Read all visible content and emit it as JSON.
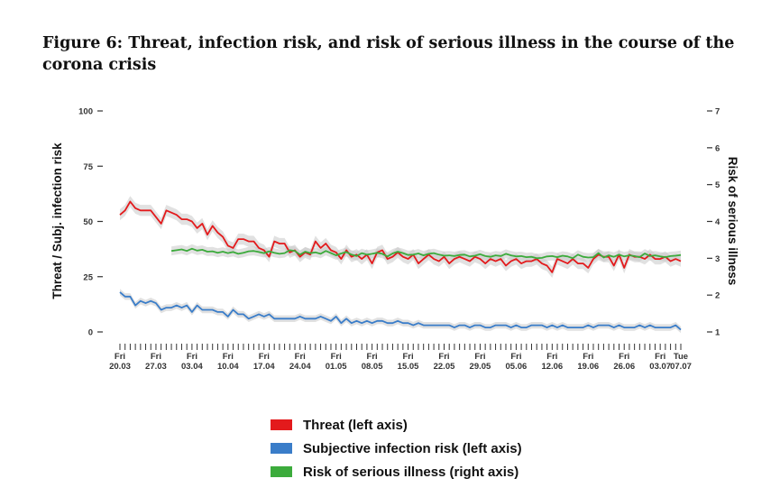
{
  "figure": {
    "title": "Figure 6: Threat, infection risk, and risk of serious illness in the course of the corona crisis"
  },
  "chart_data": {
    "type": "line",
    "ylabel": "Threat / Subj. infection risk",
    "ylabel_right": "Risk of serious illness",
    "ylim": [
      0,
      100
    ],
    "y_ticks": [
      0,
      25,
      50,
      75,
      100
    ],
    "ylim_right": [
      1,
      7
    ],
    "y_ticks_right": [
      1,
      2,
      3,
      4,
      5,
      6,
      7
    ],
    "grid": false,
    "legend_position": "bottom",
    "x_range_days": [
      0,
      109
    ],
    "x_ticks": [
      {
        "day": 0,
        "line1": "Fri",
        "line2": "20.03"
      },
      {
        "day": 7,
        "line1": "Fri",
        "line2": "27.03"
      },
      {
        "day": 14,
        "line1": "Fri",
        "line2": "03.04"
      },
      {
        "day": 21,
        "line1": "Fri",
        "line2": "10.04"
      },
      {
        "day": 28,
        "line1": "Fri",
        "line2": "17.04"
      },
      {
        "day": 35,
        "line1": "Fri",
        "line2": "24.04"
      },
      {
        "day": 42,
        "line1": "Fri",
        "line2": "01.05"
      },
      {
        "day": 49,
        "line1": "Fri",
        "line2": "08.05"
      },
      {
        "day": 56,
        "line1": "Fri",
        "line2": "15.05"
      },
      {
        "day": 63,
        "line1": "Fri",
        "line2": "22.05"
      },
      {
        "day": 70,
        "line1": "Fri",
        "line2": "29.05"
      },
      {
        "day": 77,
        "line1": "Fri",
        "line2": "05.06"
      },
      {
        "day": 84,
        "line1": "Fri",
        "line2": "12.06"
      },
      {
        "day": 91,
        "line1": "Fri",
        "line2": "19.06"
      },
      {
        "day": 98,
        "line1": "Fri",
        "line2": "26.06"
      },
      {
        "day": 105,
        "line1": "Fri",
        "line2": "03.07"
      },
      {
        "day": 109,
        "line1": "Tue",
        "line2": "07.07"
      }
    ],
    "series": [
      {
        "name": "Threat (left axis)",
        "axis": "left",
        "color": "#e31a1c",
        "band": 2.5,
        "x": [
          0,
          1,
          2,
          3,
          4,
          5,
          6,
          7,
          8,
          9,
          10,
          11,
          12,
          13,
          14,
          15,
          16,
          17,
          18,
          19,
          20,
          21,
          22,
          23,
          24,
          25,
          26,
          27,
          28,
          29,
          30,
          31,
          32,
          33,
          34,
          35,
          36,
          37,
          38,
          39,
          40,
          41,
          42,
          43,
          44,
          45,
          46,
          47,
          48,
          49,
          50,
          51,
          52,
          53,
          54,
          55,
          56,
          57,
          58,
          59,
          60,
          61,
          62,
          63,
          64,
          65,
          66,
          67,
          68,
          69,
          70,
          71,
          72,
          73,
          74,
          75,
          76,
          77,
          78,
          79,
          80,
          81,
          82,
          83,
          84,
          85,
          86,
          87,
          88,
          89,
          90,
          91,
          92,
          93,
          94,
          95,
          96,
          97,
          98,
          99,
          100,
          101,
          102,
          103,
          104,
          105,
          106,
          107,
          108,
          109
        ],
        "values": [
          53,
          55,
          59,
          56,
          55,
          55,
          55,
          52,
          49,
          55,
          54,
          53,
          51,
          51,
          50,
          47,
          49,
          44,
          48,
          45,
          43,
          39,
          38,
          42,
          42,
          41,
          41,
          38,
          37,
          34,
          41,
          40,
          40,
          36,
          37,
          34,
          36,
          35,
          41,
          38,
          40,
          37,
          36,
          33,
          37,
          34,
          35,
          33,
          35,
          31,
          36,
          37,
          33,
          34,
          36,
          34,
          33,
          35,
          31,
          33,
          35,
          33,
          32,
          34,
          31,
          33,
          34,
          33,
          32,
          34,
          33,
          31,
          33,
          32,
          33,
          30,
          32,
          33,
          31,
          32,
          32,
          33,
          31,
          30,
          27,
          33,
          32,
          31,
          33,
          31,
          31,
          29,
          33,
          35,
          34,
          34,
          30,
          35,
          29,
          35,
          34,
          34,
          33,
          35,
          33,
          33,
          34,
          32,
          33,
          32
        ]
      },
      {
        "name": "Subjective infection risk (left axis)",
        "axis": "left",
        "color": "#3a7dc9",
        "band": 1.5,
        "x": [
          0,
          1,
          2,
          3,
          4,
          5,
          6,
          7,
          8,
          9,
          10,
          11,
          12,
          13,
          14,
          15,
          16,
          17,
          18,
          19,
          20,
          21,
          22,
          23,
          24,
          25,
          26,
          27,
          28,
          29,
          30,
          31,
          32,
          33,
          34,
          35,
          36,
          37,
          38,
          39,
          40,
          41,
          42,
          43,
          44,
          45,
          46,
          47,
          48,
          49,
          50,
          51,
          52,
          53,
          54,
          55,
          56,
          57,
          58,
          59,
          60,
          61,
          62,
          63,
          64,
          65,
          66,
          67,
          68,
          69,
          70,
          71,
          72,
          73,
          74,
          75,
          76,
          77,
          78,
          79,
          80,
          81,
          82,
          83,
          84,
          85,
          86,
          87,
          88,
          89,
          90,
          91,
          92,
          93,
          94,
          95,
          96,
          97,
          98,
          99,
          100,
          101,
          102,
          103,
          104,
          105,
          106,
          107,
          108,
          109
        ],
        "values": [
          18,
          16,
          16,
          12,
          14,
          13,
          14,
          13,
          10,
          11,
          11,
          12,
          11,
          12,
          9,
          12,
          10,
          10,
          10,
          9,
          9,
          7,
          10,
          8,
          8,
          6,
          7,
          8,
          7,
          8,
          6,
          6,
          6,
          6,
          6,
          7,
          6,
          6,
          6,
          7,
          6,
          5,
          7,
          4,
          6,
          4,
          5,
          4,
          5,
          4,
          5,
          5,
          4,
          4,
          5,
          4,
          4,
          3,
          4,
          3,
          3,
          3,
          3,
          3,
          3,
          2,
          3,
          3,
          2,
          3,
          3,
          2,
          2,
          3,
          3,
          3,
          2,
          3,
          2,
          2,
          3,
          3,
          3,
          2,
          3,
          2,
          3,
          2,
          2,
          2,
          2,
          3,
          2,
          3,
          3,
          3,
          2,
          3,
          2,
          2,
          2,
          3,
          2,
          3,
          2,
          2,
          2,
          2,
          3,
          1
        ]
      },
      {
        "name": "Risk of serious illness (right axis)",
        "axis": "right",
        "color": "#3cab3c",
        "band": 0.12,
        "x": [
          10,
          11,
          12,
          13,
          14,
          15,
          16,
          17,
          18,
          19,
          20,
          21,
          22,
          23,
          24,
          25,
          26,
          27,
          28,
          29,
          30,
          31,
          32,
          33,
          34,
          35,
          36,
          37,
          38,
          39,
          40,
          41,
          42,
          43,
          44,
          45,
          46,
          47,
          48,
          49,
          50,
          51,
          52,
          53,
          54,
          55,
          56,
          57,
          58,
          59,
          60,
          61,
          62,
          63,
          64,
          65,
          66,
          67,
          68,
          69,
          70,
          71,
          72,
          73,
          74,
          75,
          76,
          77,
          78,
          79,
          80,
          81,
          82,
          83,
          84,
          85,
          86,
          87,
          88,
          89,
          90,
          91,
          92,
          93,
          94,
          95,
          96,
          97,
          98,
          99,
          100,
          101,
          102,
          103,
          104,
          105,
          106,
          107,
          108,
          109
        ],
        "values": [
          3.2,
          3.22,
          3.24,
          3.2,
          3.26,
          3.21,
          3.23,
          3.18,
          3.19,
          3.15,
          3.18,
          3.14,
          3.17,
          3.12,
          3.15,
          3.19,
          3.2,
          3.17,
          3.14,
          3.19,
          3.15,
          3.12,
          3.14,
          3.22,
          3.2,
          3.1,
          3.18,
          3.14,
          3.16,
          3.12,
          3.2,
          3.14,
          3.08,
          3.13,
          3.17,
          3.1,
          3.06,
          3.14,
          3.1,
          3.12,
          3.15,
          3.12,
          3.05,
          3.13,
          3.18,
          3.14,
          3.09,
          3.1,
          3.13,
          3.08,
          3.12,
          3.14,
          3.1,
          3.07,
          3.08,
          3.06,
          3.09,
          3.1,
          3.05,
          3.07,
          3.11,
          3.06,
          3.04,
          3.08,
          3.06,
          3.12,
          3.08,
          3.05,
          3.06,
          3.03,
          3.04,
          3.0,
          3.01,
          3.05,
          3.06,
          3.03,
          3.07,
          3.05,
          3.0,
          3.1,
          3.04,
          3.02,
          3.03,
          3.14,
          3.02,
          3.08,
          3.04,
          3.1,
          3.05,
          3.08,
          3.06,
          3.03,
          3.13,
          3.06,
          3.08,
          3.05,
          3.03,
          3.06,
          3.07,
          3.09
        ]
      }
    ]
  }
}
